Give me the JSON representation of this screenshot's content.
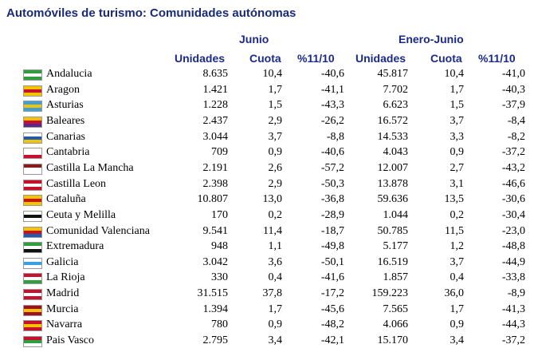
{
  "title": "Automóviles de turismo: Comunidades autónomas",
  "groups": {
    "junio": "Junio",
    "enero_junio": "Enero-Junio"
  },
  "columns": [
    "Unidades",
    "Cuota",
    "%11/10",
    "Unidades",
    "Cuota",
    "%11/10"
  ],
  "rows": [
    {
      "name": "Andalucia",
      "flag_colors": [
        "#2e9e3e",
        "#ffffff",
        "#2e9e3e"
      ],
      "values": [
        "8.635",
        "10,4",
        "-40,6",
        "45.817",
        "10,4",
        "-41,0"
      ]
    },
    {
      "name": "Aragon",
      "flag_colors": [
        "#f5c400",
        "#c8102e",
        "#f5c400"
      ],
      "values": [
        "1.421",
        "1,7",
        "-41,1",
        "7.702",
        "1,7",
        "-40,3"
      ]
    },
    {
      "name": "Asturias",
      "flag_colors": [
        "#3aa0e0",
        "#f5c400",
        "#3aa0e0"
      ],
      "values": [
        "1.228",
        "1,5",
        "-43,3",
        "6.623",
        "1,5",
        "-37,9"
      ]
    },
    {
      "name": "Baleares",
      "flag_colors": [
        "#f5c400",
        "#c8102e",
        "#5a2a8a"
      ],
      "values": [
        "2.437",
        "2,9",
        "-26,2",
        "16.572",
        "3,7",
        "-8,4"
      ]
    },
    {
      "name": "Canarias",
      "flag_colors": [
        "#ffffff",
        "#1e5bb8",
        "#f5c400"
      ],
      "values": [
        "3.044",
        "3,7",
        "-8,8",
        "14.533",
        "3,3",
        "-8,2"
      ]
    },
    {
      "name": "Cantabria",
      "flag_colors": [
        "#ffffff",
        "#ffffff",
        "#c8102e"
      ],
      "values": [
        "709",
        "0,9",
        "-40,6",
        "4.043",
        "0,9",
        "-37,2"
      ]
    },
    {
      "name": "Castilla La Mancha",
      "flag_colors": [
        "#8b1a1a",
        "#ffffff",
        "#ffffff"
      ],
      "values": [
        "2.191",
        "2,6",
        "-57,2",
        "12.007",
        "2,7",
        "-43,2"
      ]
    },
    {
      "name": "Castilla Leon",
      "flag_colors": [
        "#c8102e",
        "#ffffff",
        "#c8102e"
      ],
      "values": [
        "2.398",
        "2,9",
        "-50,3",
        "13.878",
        "3,1",
        "-46,6"
      ]
    },
    {
      "name": "Cataluña",
      "flag_colors": [
        "#f5c400",
        "#d01010",
        "#f5c400"
      ],
      "values": [
        "10.807",
        "13,0",
        "-36,8",
        "59.636",
        "13,5",
        "-30,6"
      ]
    },
    {
      "name": "Ceuta y Melilla",
      "flag_colors": [
        "#ffffff",
        "#111111",
        "#ffffff"
      ],
      "values": [
        "170",
        "0,2",
        "-28,9",
        "1.044",
        "0,2",
        "-30,4"
      ]
    },
    {
      "name": "Comunidad Valenciana",
      "flag_colors": [
        "#f5c400",
        "#d01010",
        "#1e5bb8"
      ],
      "values": [
        "9.541",
        "11,4",
        "-18,7",
        "50.785",
        "11,5",
        "-23,0"
      ]
    },
    {
      "name": "Extremadura",
      "flag_colors": [
        "#2e9e3e",
        "#ffffff",
        "#111111"
      ],
      "values": [
        "948",
        "1,1",
        "-49,8",
        "5.177",
        "1,2",
        "-48,8"
      ]
    },
    {
      "name": "Galicia",
      "flag_colors": [
        "#ffffff",
        "#3aa0e0",
        "#ffffff"
      ],
      "values": [
        "3.042",
        "3,6",
        "-50,1",
        "16.519",
        "3,7",
        "-44,9"
      ]
    },
    {
      "name": "La Rioja",
      "flag_colors": [
        "#c8102e",
        "#ffffff",
        "#2e9e3e"
      ],
      "values": [
        "330",
        "0,4",
        "-41,6",
        "1.857",
        "0,4",
        "-33,8"
      ]
    },
    {
      "name": "Madrid",
      "flag_colors": [
        "#c8102e",
        "#ffffff",
        "#c8102e"
      ],
      "values": [
        "31.515",
        "37,8",
        "-17,2",
        "159.223",
        "36,0",
        "-8,9"
      ]
    },
    {
      "name": "Murcia",
      "flag_colors": [
        "#a01020",
        "#f5c400",
        "#a01020"
      ],
      "values": [
        "1.394",
        "1,7",
        "-45,6",
        "7.565",
        "1,7",
        "-41,3"
      ]
    },
    {
      "name": "Navarra",
      "flag_colors": [
        "#c8102e",
        "#f5c400",
        "#c8102e"
      ],
      "values": [
        "780",
        "0,9",
        "-48,2",
        "4.066",
        "0,9",
        "-44,3"
      ]
    },
    {
      "name": "Pais Vasco",
      "flag_colors": [
        "#c8102e",
        "#2e9e3e",
        "#ffffff"
      ],
      "values": [
        "2.795",
        "3,4",
        "-42,1",
        "15.170",
        "3,4",
        "-37,2"
      ]
    }
  ]
}
